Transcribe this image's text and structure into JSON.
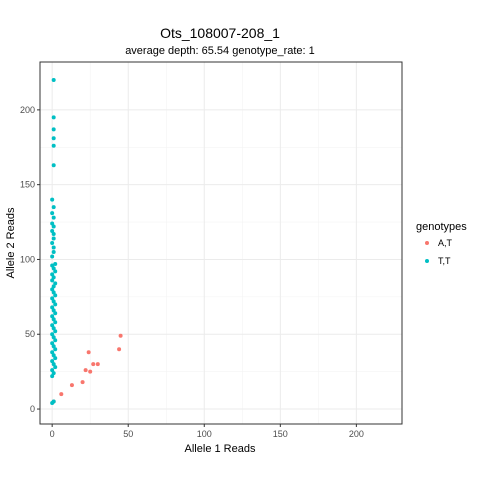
{
  "chart_data": {
    "type": "scatter",
    "title": "Ots_108007-208_1",
    "subtitle": "average depth:  65.54  genotype_rate:  1",
    "xlabel": "Allele 1 Reads",
    "ylabel": "Allele 2 Reads",
    "xlim": [
      -8,
      230
    ],
    "ylim": [
      -10,
      232
    ],
    "xticks": [
      0,
      50,
      100,
      150,
      200
    ],
    "yticks": [
      0,
      50,
      100,
      150,
      200
    ],
    "grid": true,
    "legend": {
      "title": "genotypes",
      "position": "right"
    },
    "series": [
      {
        "name": "A,T",
        "color": "#F8766D",
        "points": [
          [
            1,
            5
          ],
          [
            6,
            10
          ],
          [
            13,
            16
          ],
          [
            20,
            18
          ],
          [
            22,
            26
          ],
          [
            25,
            25
          ],
          [
            24,
            38
          ],
          [
            27,
            30
          ],
          [
            30,
            30
          ],
          [
            44,
            40
          ],
          [
            45,
            49
          ]
        ]
      },
      {
        "name": "T,T",
        "color": "#00BFC4",
        "points": [
          [
            1,
            220
          ],
          [
            1,
            195
          ],
          [
            1,
            187
          ],
          [
            1,
            181
          ],
          [
            1,
            176
          ],
          [
            1,
            163
          ],
          [
            0,
            140
          ],
          [
            1,
            135
          ],
          [
            0,
            131
          ],
          [
            1,
            128
          ],
          [
            0,
            124
          ],
          [
            1,
            122
          ],
          [
            0,
            119
          ],
          [
            1,
            117
          ],
          [
            1,
            114
          ],
          [
            0,
            111
          ],
          [
            1,
            108
          ],
          [
            1,
            105
          ],
          [
            0,
            102
          ],
          [
            2,
            97
          ],
          [
            0,
            96
          ],
          [
            1,
            94
          ],
          [
            2,
            92
          ],
          [
            0,
            90
          ],
          [
            1,
            88
          ],
          [
            0,
            86
          ],
          [
            2,
            84
          ],
          [
            1,
            82
          ],
          [
            0,
            80
          ],
          [
            1,
            78
          ],
          [
            2,
            76
          ],
          [
            0,
            74
          ],
          [
            1,
            72
          ],
          [
            2,
            70
          ],
          [
            0,
            68
          ],
          [
            1,
            66
          ],
          [
            2,
            64
          ],
          [
            0,
            62
          ],
          [
            1,
            60
          ],
          [
            2,
            58
          ],
          [
            0,
            56
          ],
          [
            1,
            54
          ],
          [
            2,
            52
          ],
          [
            0,
            50
          ],
          [
            1,
            48
          ],
          [
            2,
            46
          ],
          [
            0,
            44
          ],
          [
            1,
            42
          ],
          [
            2,
            40
          ],
          [
            0,
            38
          ],
          [
            1,
            36
          ],
          [
            2,
            34
          ],
          [
            0,
            32
          ],
          [
            1,
            30
          ],
          [
            2,
            28
          ],
          [
            0,
            26
          ],
          [
            1,
            24
          ],
          [
            0,
            22
          ],
          [
            1,
            5
          ],
          [
            0,
            4
          ]
        ]
      }
    ]
  }
}
